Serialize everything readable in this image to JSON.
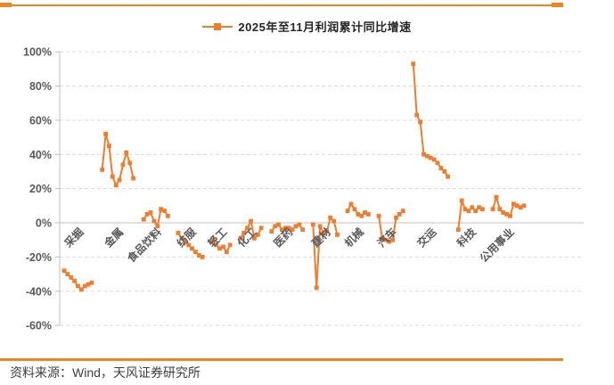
{
  "colors": {
    "accent": "#ED7D31",
    "accent_rule": "#F0831E",
    "grid": "#D9D9D9",
    "axis": "#BFBFBF",
    "text_dark": "#262626",
    "text_gray": "#595959"
  },
  "legend": {
    "series_label": "2025年至11月利润累计同比增速"
  },
  "chart_data": {
    "type": "line",
    "title": "2025年至11月利润累计同比增速",
    "unit": "%",
    "ylim": [
      -60,
      100
    ],
    "yticks": [
      100,
      80,
      60,
      40,
      20,
      0,
      -20,
      -40,
      -60
    ],
    "ytick_labels": [
      "100%",
      "80%",
      "60%",
      "40%",
      "20%",
      "0%",
      "-20%",
      "-40%",
      "-60%"
    ],
    "grid": "dashed-horizontal, zero-line solid",
    "legend_position": "top-center",
    "marker": "square",
    "groups": [
      {
        "label": "采掘",
        "values": [
          -28,
          -30,
          -32,
          -34,
          -37,
          -39,
          -37,
          -36,
          -35
        ]
      },
      {
        "label": "金属",
        "values": [
          31,
          52,
          45,
          27,
          22,
          25,
          34,
          41,
          35,
          26
        ]
      },
      {
        "label": "食品饮料",
        "values": [
          2,
          5,
          6,
          1,
          -2,
          8,
          7,
          4
        ]
      },
      {
        "label": "纺服",
        "values": [
          -6,
          -9,
          -11,
          -13,
          -15,
          -17,
          -19,
          -20
        ]
      },
      {
        "label": "轻工",
        "values": [
          -10,
          -13,
          -15,
          -14,
          -17,
          -13
        ]
      },
      {
        "label": "化工",
        "values": [
          -9,
          -6,
          -3,
          1,
          -9,
          -7,
          -3
        ]
      },
      {
        "label": "医药",
        "values": [
          -5,
          -2,
          -1,
          -4,
          -3,
          -3,
          -4,
          -2,
          -1,
          -4
        ]
      },
      {
        "label": "建材",
        "values": [
          -1,
          -38,
          -2,
          -6,
          -5,
          3,
          1,
          -7
        ]
      },
      {
        "label": "机械",
        "values": [
          7,
          11,
          8,
          5,
          4,
          6,
          5
        ]
      },
      {
        "label": "汽车",
        "values": [
          4,
          -9,
          -10,
          -11,
          -10,
          3,
          5,
          7
        ]
      },
      {
        "label": "交运",
        "values": [
          93,
          63,
          59,
          40,
          39,
          38,
          37,
          35,
          32,
          30,
          27
        ]
      },
      {
        "label": "科技",
        "values": [
          -4,
          13,
          8,
          7,
          9,
          7,
          9,
          8
        ]
      },
      {
        "label": "公用事业",
        "values": [
          8,
          15,
          8,
          6,
          5,
          4,
          11,
          10,
          9,
          10
        ]
      }
    ]
  },
  "footer": {
    "source": "资料来源：Wind，天风证券研究所"
  }
}
